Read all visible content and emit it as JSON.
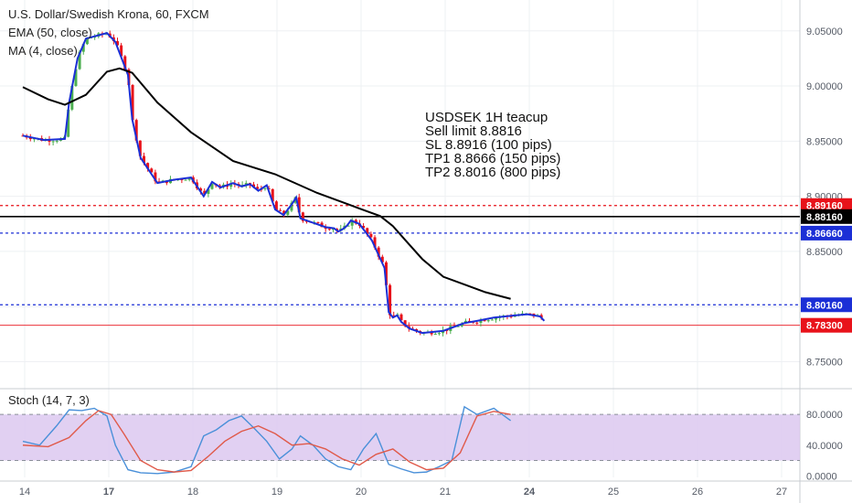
{
  "chart_data": [
    {
      "type": "candlestick",
      "title": "U.S. Dollar/Swedish Krona, 60, FXCM",
      "indicators": [
        "EMA (50, close)",
        "MA (4, close)"
      ],
      "price_axis_ticks": [
        "9.05000",
        "9.00000",
        "8.95000",
        "8.90000",
        "8.85000",
        "8.75000"
      ],
      "time_axis_ticks": [
        "14",
        "17",
        "18",
        "19",
        "20",
        "21",
        "24",
        "25",
        "26",
        "27"
      ],
      "ylim": [
        8.728,
        9.078
      ],
      "horizontal_levels": [
        {
          "name": "SL",
          "value": 8.8916,
          "label": "8.89160",
          "color": "#e8121a",
          "style": "dotted"
        },
        {
          "name": "Entry",
          "value": 8.8816,
          "label": "8.88160",
          "color": "#000000",
          "style": "solid"
        },
        {
          "name": "TP1",
          "value": 8.8666,
          "label": "8.86660",
          "color": "#1b2fd6",
          "style": "dotted"
        },
        {
          "name": "TP2",
          "value": 8.8016,
          "label": "8.80160",
          "color": "#1b2fd6",
          "style": "dotted"
        },
        {
          "name": "Last",
          "value": 8.783,
          "label": "8.78300",
          "color": "#e8121a",
          "style": "solid-thin"
        }
      ],
      "annotation": [
        "USDSEK 1H teacup",
        "Sell limit 8.8816",
        "SL 8.8916 (100 pips)",
        "TP1 8.8666 (150 pips)",
        "TP2 8.8016 (800 pips)"
      ],
      "price_series": {
        "x": [
          0.0,
          0.25,
          0.5,
          0.55,
          0.65,
          0.75,
          1.0,
          1.1,
          1.25,
          1.3,
          1.4,
          1.6,
          1.8,
          2.0,
          2.15,
          2.25,
          2.35,
          2.5,
          2.6,
          2.7,
          2.8,
          2.9,
          3.0,
          3.1,
          3.2,
          3.25,
          3.3,
          3.45,
          3.6,
          3.7,
          3.75,
          3.8,
          3.85,
          3.9,
          4.0,
          4.15,
          4.3,
          4.35,
          4.4,
          4.45,
          4.5,
          4.6,
          4.75,
          5.0,
          5.25,
          5.4,
          5.6,
          5.85,
          6.0,
          6.15,
          6.2
        ],
        "close": [
          8.955,
          8.951,
          8.952,
          8.985,
          9.025,
          9.043,
          9.048,
          9.04,
          9.01,
          8.97,
          8.935,
          8.912,
          8.915,
          8.917,
          8.9,
          8.913,
          8.908,
          8.912,
          8.909,
          8.911,
          8.905,
          8.91,
          8.888,
          8.883,
          8.893,
          8.899,
          8.88,
          8.876,
          8.872,
          8.871,
          8.868,
          8.87,
          8.873,
          8.878,
          8.875,
          8.86,
          8.835,
          8.795,
          8.79,
          8.792,
          8.786,
          8.78,
          8.776,
          8.778,
          8.785,
          8.787,
          8.79,
          8.792,
          8.793,
          8.791,
          8.787
        ]
      },
      "ema_50": {
        "x": [
          0.0,
          0.3,
          0.5,
          0.75,
          1.0,
          1.15,
          1.3,
          1.6,
          2.0,
          2.5,
          3.0,
          3.5,
          4.0,
          4.25,
          4.4,
          4.55,
          4.75,
          5.0,
          5.5,
          5.8
        ],
        "y": [
          8.999,
          8.988,
          8.983,
          8.992,
          9.013,
          9.016,
          9.012,
          8.985,
          8.958,
          8.932,
          8.92,
          8.903,
          8.889,
          8.882,
          8.873,
          8.86,
          8.843,
          8.827,
          8.813,
          8.807
        ]
      },
      "ma_4_color": "#1b2fd6",
      "ema_color": "#000000",
      "candle_up_color": "#4caf50",
      "candle_down_color": "#e8121a"
    },
    {
      "type": "line",
      "title": "Stoch (14, 7, 3)",
      "ylim": [
        -2,
        110
      ],
      "ticks": [
        "80.0000",
        "40.0000",
        "0.0000"
      ],
      "band": [
        20,
        80
      ],
      "band_color": "#dcc8f0",
      "series": [
        {
          "color": "#4a90d9",
          "x": [
            0.0,
            0.2,
            0.4,
            0.55,
            0.7,
            0.85,
            1.0,
            1.1,
            1.25,
            1.4,
            1.6,
            1.8,
            2.0,
            2.15,
            2.3,
            2.45,
            2.6,
            2.75,
            2.9,
            3.05,
            3.2,
            3.3,
            3.45,
            3.6,
            3.75,
            3.9,
            4.05,
            4.2,
            4.35,
            4.5,
            4.65,
            4.8,
            4.95,
            5.1,
            5.25,
            5.4,
            5.6,
            5.8
          ],
          "y": [
            45,
            40,
            65,
            86,
            85,
            88,
            78,
            40,
            8,
            4,
            3,
            5,
            12,
            52,
            60,
            72,
            78,
            62,
            45,
            22,
            35,
            52,
            40,
            22,
            12,
            8,
            35,
            55,
            15,
            9,
            4,
            5,
            12,
            20,
            90,
            80,
            88,
            72
          ]
        },
        {
          "color": "#e05a4a",
          "x": [
            0.0,
            0.3,
            0.55,
            0.75,
            0.9,
            1.05,
            1.2,
            1.4,
            1.6,
            1.8,
            2.0,
            2.2,
            2.4,
            2.6,
            2.8,
            3.0,
            3.2,
            3.4,
            3.6,
            3.8,
            4.0,
            4.2,
            4.4,
            4.6,
            4.8,
            5.0,
            5.2,
            5.4,
            5.6,
            5.8
          ],
          "y": [
            40,
            38,
            50,
            72,
            85,
            80,
            55,
            20,
            8,
            5,
            7,
            25,
            45,
            58,
            65,
            55,
            40,
            42,
            35,
            22,
            14,
            28,
            35,
            18,
            8,
            10,
            30,
            78,
            84,
            80
          ]
        }
      ]
    }
  ],
  "legend": {
    "title": "U.S. Dollar/Swedish Krona, 60, FXCM",
    "ema": "EMA (50, close)",
    "ma": "MA (4, close)"
  },
  "stoch_label": "Stoch (14, 7, 3)"
}
